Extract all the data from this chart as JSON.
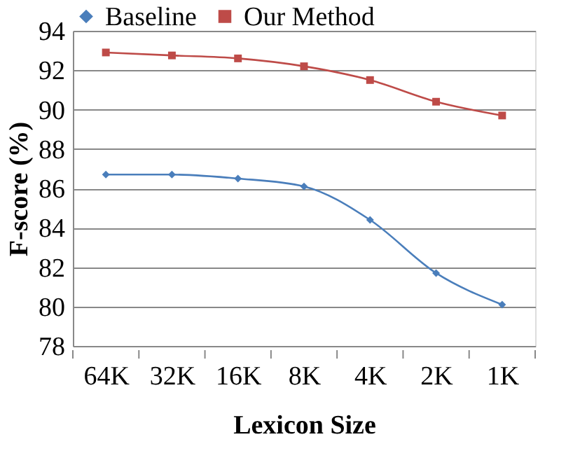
{
  "chart_data": {
    "type": "line",
    "xlabel": "Lexicon Size",
    "ylabel": "F-score (%)",
    "categories": [
      "64K",
      "32K",
      "16K",
      "8K",
      "4K",
      "2K",
      "1K"
    ],
    "series": [
      {
        "name": "Baseline",
        "color": "#4a7ebb",
        "marker": "diamond",
        "values": [
          86.7,
          86.7,
          86.5,
          86.1,
          84.4,
          81.7,
          80.1
        ]
      },
      {
        "name": "Our Method",
        "color": "#be4b48",
        "marker": "square",
        "values": [
          92.9,
          92.75,
          92.6,
          92.2,
          91.5,
          90.4,
          89.7
        ]
      }
    ],
    "ylim": [
      78,
      94
    ],
    "yticks": [
      78,
      80,
      82,
      84,
      86,
      88,
      90,
      92,
      94
    ],
    "grid": "y",
    "legend": "top",
    "line_style": "solid"
  }
}
